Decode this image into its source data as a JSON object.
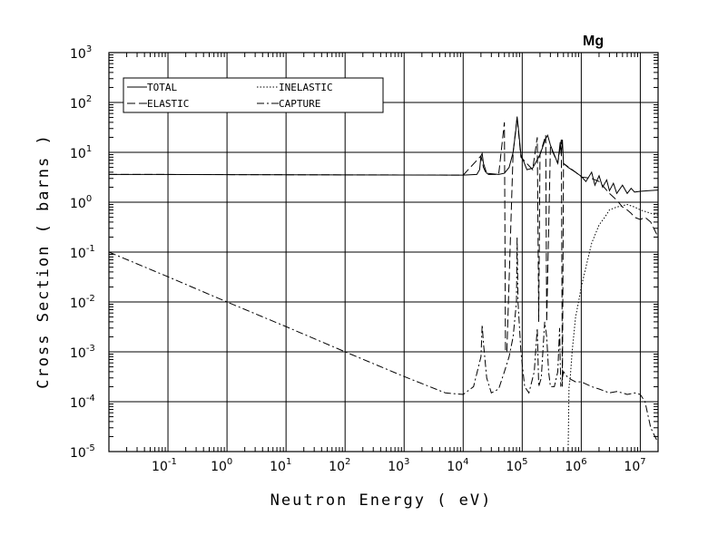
{
  "chart_data": {
    "type": "line",
    "title": "Mg",
    "xlabel": "Neutron Energy ( eV)",
    "ylabel": "Cross Section ( barns )",
    "xscale": "log",
    "yscale": "log",
    "xlim": [
      0.01,
      20000000
    ],
    "ylim": [
      1e-05,
      1000
    ],
    "grid": true,
    "legend_position": "top-left",
    "x_ticks": [
      {
        "base": "10",
        "exp": "-1",
        "value": 0.1
      },
      {
        "base": "10",
        "exp": "0",
        "value": 1
      },
      {
        "base": "10",
        "exp": "1",
        "value": 10
      },
      {
        "base": "10",
        "exp": "2",
        "value": 100
      },
      {
        "base": "10",
        "exp": "3",
        "value": 1000
      },
      {
        "base": "10",
        "exp": "4",
        "value": 10000
      },
      {
        "base": "10",
        "exp": "5",
        "value": 100000
      },
      {
        "base": "10",
        "exp": "6",
        "value": 1000000
      },
      {
        "base": "10",
        "exp": "7",
        "value": 10000000
      }
    ],
    "y_ticks": [
      {
        "base": "10",
        "exp": "-5",
        "value": 1e-05
      },
      {
        "base": "10",
        "exp": "-4",
        "value": 0.0001
      },
      {
        "base": "10",
        "exp": "-3",
        "value": 0.001
      },
      {
        "base": "10",
        "exp": "-2",
        "value": 0.01
      },
      {
        "base": "10",
        "exp": "-1",
        "value": 0.1
      },
      {
        "base": "10",
        "exp": "0",
        "value": 1
      },
      {
        "base": "10",
        "exp": "1",
        "value": 10
      },
      {
        "base": "10",
        "exp": "2",
        "value": 100
      },
      {
        "base": "10",
        "exp": "3",
        "value": 1000
      }
    ],
    "series": [
      {
        "name": "TOTAL",
        "dash": "solid",
        "points": [
          [
            0.01,
            3.6
          ],
          [
            0.07,
            3.6
          ],
          [
            10000,
            3.5
          ],
          [
            17000,
            3.6
          ],
          [
            19000,
            4.5
          ],
          [
            20000,
            8.5
          ],
          [
            21000,
            9.5
          ],
          [
            22000,
            6.0
          ],
          [
            25000,
            3.8
          ],
          [
            40000,
            3.6
          ],
          [
            50000,
            3.8
          ],
          [
            60000,
            5.0
          ],
          [
            70000,
            10
          ],
          [
            78000,
            28
          ],
          [
            82000,
            52
          ],
          [
            86000,
            30
          ],
          [
            95000,
            9
          ],
          [
            120000,
            4.5
          ],
          [
            150000,
            4.8
          ],
          [
            200000,
            9
          ],
          [
            250000,
            19
          ],
          [
            270000,
            22
          ],
          [
            300000,
            14
          ],
          [
            400000,
            6
          ],
          [
            440000,
            16
          ],
          [
            460000,
            9
          ],
          [
            480000,
            18
          ],
          [
            500000,
            6
          ],
          [
            600000,
            5
          ],
          [
            800000,
            4
          ],
          [
            1000000,
            3.3
          ],
          [
            1200000,
            2.6
          ],
          [
            1500000,
            4.0
          ],
          [
            1700000,
            2.2
          ],
          [
            2000000,
            3.4
          ],
          [
            2300000,
            2.0
          ],
          [
            2700000,
            2.8
          ],
          [
            3000000,
            1.7
          ],
          [
            3500000,
            2.4
          ],
          [
            4000000,
            1.5
          ],
          [
            5000000,
            2.2
          ],
          [
            6000000,
            1.5
          ],
          [
            7000000,
            1.9
          ],
          [
            8000000,
            1.6
          ],
          [
            10000000,
            1.65
          ],
          [
            14000000,
            1.7
          ],
          [
            20000000,
            1.75
          ]
        ]
      },
      {
        "name": "ELASTIC",
        "dash": "long-dash",
        "points": [
          [
            0.01,
            3.6
          ],
          [
            0.07,
            3.6
          ],
          [
            10000,
            3.5
          ],
          [
            20000,
            8.5
          ],
          [
            22000,
            5
          ],
          [
            25000,
            3.6
          ],
          [
            40000,
            3.6
          ],
          [
            50000,
            40
          ],
          [
            52000,
            0.001
          ],
          [
            55000,
            0.001
          ],
          [
            70000,
            10
          ],
          [
            82000,
            50
          ],
          [
            95000,
            8
          ],
          [
            150000,
            4.5
          ],
          [
            180000,
            20
          ],
          [
            190000,
            0.004
          ],
          [
            200000,
            9
          ],
          [
            250000,
            22
          ],
          [
            260000,
            0.004
          ],
          [
            300000,
            13
          ],
          [
            400000,
            6
          ],
          [
            460000,
            18
          ],
          [
            480000,
            0.0002
          ],
          [
            500000,
            6
          ],
          [
            800000,
            4
          ],
          [
            1000000,
            3.2
          ],
          [
            1500000,
            3.0
          ],
          [
            2000000,
            2.6
          ],
          [
            3000000,
            1.5
          ],
          [
            4000000,
            1.1
          ],
          [
            5000000,
            0.8
          ],
          [
            6000000,
            0.7
          ],
          [
            7000000,
            0.6
          ],
          [
            8000000,
            0.5
          ],
          [
            10000000,
            0.45
          ],
          [
            12000000,
            0.5
          ],
          [
            15000000,
            0.4
          ],
          [
            20000000,
            0.2
          ]
        ]
      },
      {
        "name": "INELASTIC",
        "dash": "dotted",
        "points": [
          [
            600000,
            1e-05
          ],
          [
            620000,
            0.0002
          ],
          [
            650000,
            0.0003
          ],
          [
            700000,
            0.001
          ],
          [
            800000,
            0.005
          ],
          [
            900000,
            0.01
          ],
          [
            1000000,
            0.02
          ],
          [
            1200000,
            0.05
          ],
          [
            1500000,
            0.15
          ],
          [
            2000000,
            0.35
          ],
          [
            2500000,
            0.5
          ],
          [
            3000000,
            0.7
          ],
          [
            4000000,
            0.8
          ],
          [
            5000000,
            0.85
          ],
          [
            6000000,
            0.9
          ],
          [
            8000000,
            0.8
          ],
          [
            10000000,
            0.7
          ],
          [
            15000000,
            0.6
          ],
          [
            20000000,
            0.55
          ]
        ]
      },
      {
        "name": "CAPTURE",
        "dash": "dash-dot",
        "points": [
          [
            0.01,
            0.1
          ],
          [
            0.1,
            0.032
          ],
          [
            1,
            0.01
          ],
          [
            10,
            0.0032
          ],
          [
            100,
            0.001
          ],
          [
            1000,
            0.00032
          ],
          [
            5000,
            0.00015
          ],
          [
            10000,
            0.00014
          ],
          [
            15000,
            0.0002
          ],
          [
            20000,
            0.0008
          ],
          [
            21000,
            0.0035
          ],
          [
            22000,
            0.0015
          ],
          [
            25000,
            0.0003
          ],
          [
            30000,
            0.00015
          ],
          [
            40000,
            0.00018
          ],
          [
            50000,
            0.0004
          ],
          [
            60000,
            0.0008
          ],
          [
            70000,
            0.002
          ],
          [
            80000,
            0.01
          ],
          [
            82000,
            0.2
          ],
          [
            85000,
            0.01
          ],
          [
            95000,
            0.001
          ],
          [
            110000,
            0.0002
          ],
          [
            130000,
            0.00015
          ],
          [
            160000,
            0.0004
          ],
          [
            180000,
            0.003
          ],
          [
            190000,
            0.0002
          ],
          [
            210000,
            0.0003
          ],
          [
            240000,
            0.004
          ],
          [
            260000,
            0.002
          ],
          [
            280000,
            0.0004
          ],
          [
            300000,
            0.0002
          ],
          [
            350000,
            0.0002
          ],
          [
            400000,
            0.0004
          ],
          [
            430000,
            0.003
          ],
          [
            450000,
            0.0002
          ],
          [
            500000,
            0.0004
          ],
          [
            600000,
            0.0003
          ],
          [
            800000,
            0.00025
          ],
          [
            1000000,
            0.00025
          ],
          [
            1500000,
            0.0002
          ],
          [
            2000000,
            0.00018
          ],
          [
            3000000,
            0.00015
          ],
          [
            4000000,
            0.00016
          ],
          [
            5000000,
            0.00015
          ],
          [
            6000000,
            0.00014
          ],
          [
            8000000,
            0.00015
          ],
          [
            10000000,
            0.00014
          ],
          [
            12000000,
            0.0001
          ],
          [
            15000000,
            3e-05
          ],
          [
            20000000,
            1.5e-05
          ]
        ]
      }
    ]
  }
}
